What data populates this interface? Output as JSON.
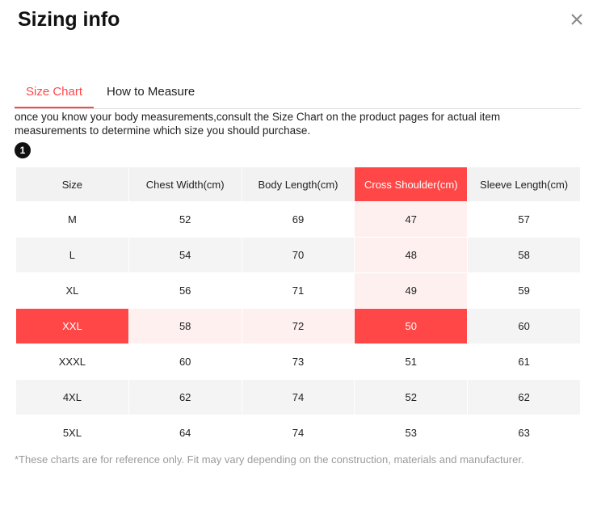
{
  "header": {
    "title": "Sizing info"
  },
  "tabs": [
    "Size Chart",
    "How to Measure"
  ],
  "description": "once you know your body measurements,consult the Size Chart on the product pages for actual item measurements to determine which size you should purchase.",
  "badge": "1",
  "table": {
    "columns": [
      "Size",
      "Chest Width(cm)",
      "Body Length(cm)",
      "Cross Shoulder(cm)",
      "Sleeve Length(cm)"
    ],
    "rows": [
      [
        "M",
        "52",
        "69",
        "47",
        "57"
      ],
      [
        "L",
        "54",
        "70",
        "48",
        "58"
      ],
      [
        "XL",
        "56",
        "71",
        "49",
        "59"
      ],
      [
        "XXL",
        "58",
        "72",
        "50",
        "60"
      ],
      [
        "XXXL",
        "60",
        "73",
        "51",
        "61"
      ],
      [
        "4XL",
        "62",
        "74",
        "52",
        "62"
      ],
      [
        "5XL",
        "64",
        "74",
        "53",
        "63"
      ]
    ]
  },
  "footnote": "*These charts are for reference only. Fit may vary depending on the construction, materials and manufacturer."
}
